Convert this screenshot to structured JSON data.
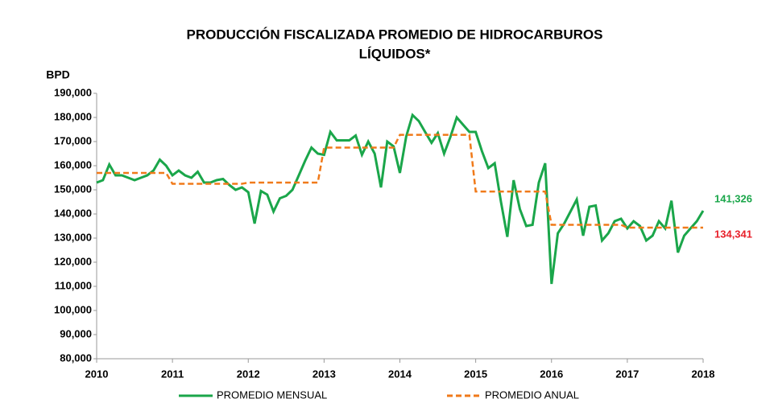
{
  "chart_data": {
    "type": "line",
    "title": [
      "PRODUCCIÓN FISCALIZADA PROMEDIO DE HIDROCARBUROS",
      "LÍQUIDOS*"
    ],
    "y_label": "BPD",
    "xlim": [
      2010,
      2018
    ],
    "xticks": [
      2010,
      2011,
      2012,
      2013,
      2014,
      2015,
      2016,
      2017,
      2018
    ],
    "ylim": [
      80000,
      190000
    ],
    "yticks": [
      {
        "value": 80000,
        "label": "80,000"
      },
      {
        "value": 90000,
        "label": "90,000"
      },
      {
        "value": 100000,
        "label": "100,000"
      },
      {
        "value": 110000,
        "label": "110,000"
      },
      {
        "value": 120000,
        "label": "120,000"
      },
      {
        "value": 130000,
        "label": "130,000"
      },
      {
        "value": 140000,
        "label": "140,000"
      },
      {
        "value": 150000,
        "label": "150,000"
      },
      {
        "value": 160000,
        "label": "160,000"
      },
      {
        "value": 170000,
        "label": "170,000"
      },
      {
        "value": 180000,
        "label": "180,000"
      },
      {
        "value": 190000,
        "label": "190,000"
      }
    ],
    "grid": false,
    "legend": "bottom",
    "x": [
      2010,
      2010.083,
      2010.167,
      2010.25,
      2010.333,
      2010.417,
      2010.5,
      2010.583,
      2010.667,
      2010.75,
      2010.833,
      2010.917,
      2011,
      2011.083,
      2011.167,
      2011.25,
      2011.333,
      2011.417,
      2011.5,
      2011.583,
      2011.667,
      2011.75,
      2011.833,
      2011.917,
      2012,
      2012.083,
      2012.167,
      2012.25,
      2012.333,
      2012.417,
      2012.5,
      2012.583,
      2012.667,
      2012.75,
      2012.833,
      2012.917,
      2013,
      2013.083,
      2013.167,
      2013.25,
      2013.333,
      2013.417,
      2013.5,
      2013.583,
      2013.667,
      2013.75,
      2013.833,
      2013.917,
      2014,
      2014.083,
      2014.167,
      2014.25,
      2014.333,
      2014.417,
      2014.5,
      2014.583,
      2014.667,
      2014.75,
      2014.833,
      2014.917,
      2015,
      2015.083,
      2015.167,
      2015.25,
      2015.333,
      2015.417,
      2015.5,
      2015.583,
      2015.667,
      2015.75,
      2015.833,
      2015.917,
      2016,
      2016.083,
      2016.167,
      2016.25,
      2016.333,
      2016.417,
      2016.5,
      2016.583,
      2016.667,
      2016.75,
      2016.833,
      2016.917,
      2017,
      2017.083,
      2017.167,
      2017.25,
      2017.333,
      2017.417,
      2017.5,
      2017.583,
      2017.667,
      2017.75,
      2017.833,
      2017.917,
      2018
    ],
    "series": [
      {
        "name": "PROMEDIO MENSUAL",
        "color": "#1aa64a",
        "dash": false,
        "last_value_label": "141,326",
        "values": [
          153000,
          154000,
          160500,
          156000,
          156000,
          155000,
          154000,
          155000,
          156000,
          158000,
          162500,
          160000,
          156000,
          158000,
          156000,
          155000,
          157500,
          153000,
          153000,
          154000,
          154500,
          152000,
          150000,
          151000,
          149000,
          136000,
          149500,
          148000,
          141000,
          146500,
          147500,
          150000,
          156000,
          162000,
          167500,
          165000,
          164500,
          174000,
          170500,
          170500,
          170500,
          172500,
          164500,
          170000,
          165000,
          151000,
          170000,
          168000,
          157000,
          172000,
          181000,
          178500,
          174000,
          169500,
          173500,
          165000,
          172000,
          180000,
          177000,
          174000,
          174000,
          166000,
          159000,
          161000,
          145000,
          130500,
          154000,
          142000,
          135000,
          135500,
          153000,
          161000,
          111000,
          132000,
          136000,
          141000,
          146000,
          131000,
          143000,
          143500,
          129000,
          132000,
          137000,
          138000,
          134000,
          137000,
          135000,
          129000,
          131000,
          137000,
          134000,
          145500,
          124000,
          131000,
          134000,
          137000,
          141326
        ]
      },
      {
        "name": "PROMEDIO ANUAL",
        "color": "#f07a1a",
        "dash": true,
        "last_value_label": "134,341",
        "values": [
          157000,
          157000,
          157000,
          157000,
          157000,
          157000,
          157000,
          157000,
          157000,
          157000,
          157000,
          157000,
          152500,
          152500,
          152500,
          152500,
          152500,
          152500,
          152500,
          152500,
          152500,
          152500,
          152500,
          152500,
          153000,
          153000,
          153000,
          153000,
          153000,
          153000,
          153000,
          153000,
          153000,
          153000,
          153000,
          153000,
          167500,
          167500,
          167500,
          167500,
          167500,
          167500,
          167500,
          167500,
          167500,
          167500,
          167500,
          167500,
          172800,
          172800,
          172800,
          172800,
          172800,
          172800,
          172800,
          172800,
          172800,
          172800,
          172800,
          172800,
          149300,
          149300,
          149300,
          149300,
          149300,
          149300,
          149300,
          149300,
          149300,
          149300,
          149300,
          149300,
          135500,
          135500,
          135500,
          135500,
          135500,
          135500,
          135500,
          135500,
          135500,
          135500,
          135500,
          135500,
          134341,
          134341,
          134341,
          134341,
          134341,
          134341,
          134341,
          134341,
          134341,
          134341,
          134341,
          134341,
          134341
        ]
      }
    ]
  }
}
